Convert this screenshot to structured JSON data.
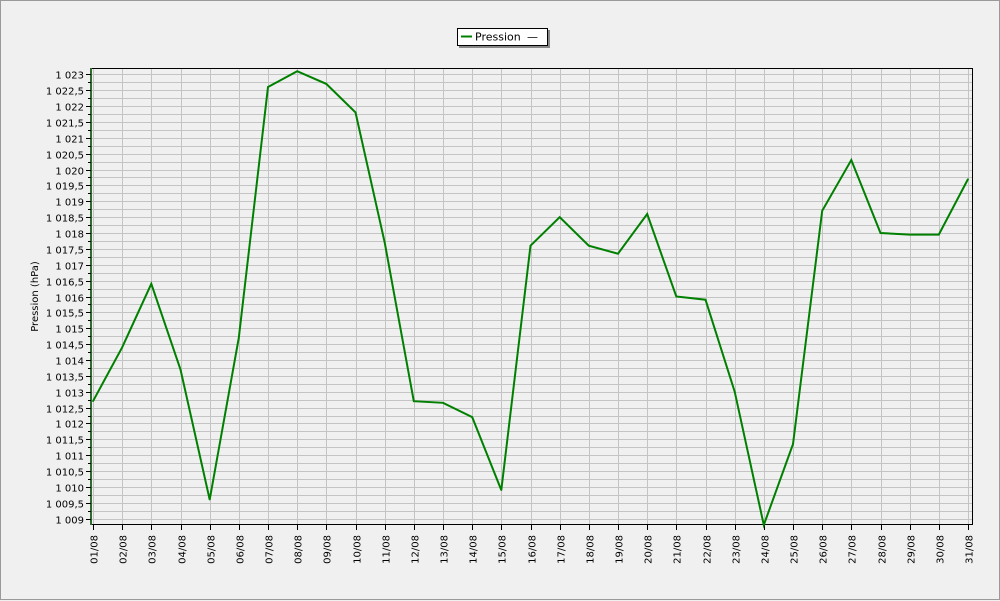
{
  "chart_data": {
    "type": "line",
    "title": "",
    "xlabel": "",
    "ylabel": "Pression (hPa)",
    "ylim": [
      1008.8,
      1023.2
    ],
    "y_ticks": [
      1009,
      1009.5,
      1010,
      1010.5,
      1011,
      1011.5,
      1012,
      1012.5,
      1013,
      1013.5,
      1014,
      1014.5,
      1015,
      1015.5,
      1016,
      1016.5,
      1017,
      1017.5,
      1018,
      1018.5,
      1019,
      1019.5,
      1020,
      1020.5,
      1021,
      1021.5,
      1022,
      1022.5,
      1023
    ],
    "y_tick_labels": [
      "1 009",
      "1 009,5",
      "1 010",
      "1 010,5",
      "1 011",
      "1 011,5",
      "1 012",
      "1 012,5",
      "1 013",
      "1 013,5",
      "1 014",
      "1 014,5",
      "1 015",
      "1 015,5",
      "1 016",
      "1 016,5",
      "1 017",
      "1 017,5",
      "1 018",
      "1 018,5",
      "1 019",
      "1 019,5",
      "1 020",
      "1 020,5",
      "1 021",
      "1 021,5",
      "1 022",
      "1 022,5",
      "1 023"
    ],
    "categories": [
      "01/08",
      "02/08",
      "03/08",
      "04/08",
      "05/08",
      "06/08",
      "07/08",
      "08/08",
      "09/08",
      "10/08",
      "11/08",
      "12/08",
      "13/08",
      "14/08",
      "15/08",
      "16/08",
      "17/08",
      "18/08",
      "19/08",
      "20/08",
      "21/08",
      "22/08",
      "23/08",
      "24/08",
      "25/08",
      "26/08",
      "27/08",
      "28/08",
      "29/08",
      "30/08",
      "31/08"
    ],
    "series": [
      {
        "name": "Pression",
        "color": "#008000",
        "values": [
          1012.7,
          1014.4,
          1016.4,
          1013.7,
          1009.6,
          1014.7,
          1022.6,
          1023.1,
          1022.7,
          1021.8,
          1017.7,
          1012.7,
          1012.65,
          1012.2,
          1009.9,
          1017.6,
          1018.5,
          1017.6,
          1017.35,
          1018.6,
          1016.0,
          1015.9,
          1013.0,
          1008.8,
          1011.35,
          1018.7,
          1020.3,
          1018.0,
          1017.95,
          1017.95,
          1019.7
        ]
      }
    ],
    "grid": true,
    "legend": {
      "position": "top-center",
      "entries": [
        {
          "label": "Pression",
          "value": "—"
        }
      ]
    }
  }
}
